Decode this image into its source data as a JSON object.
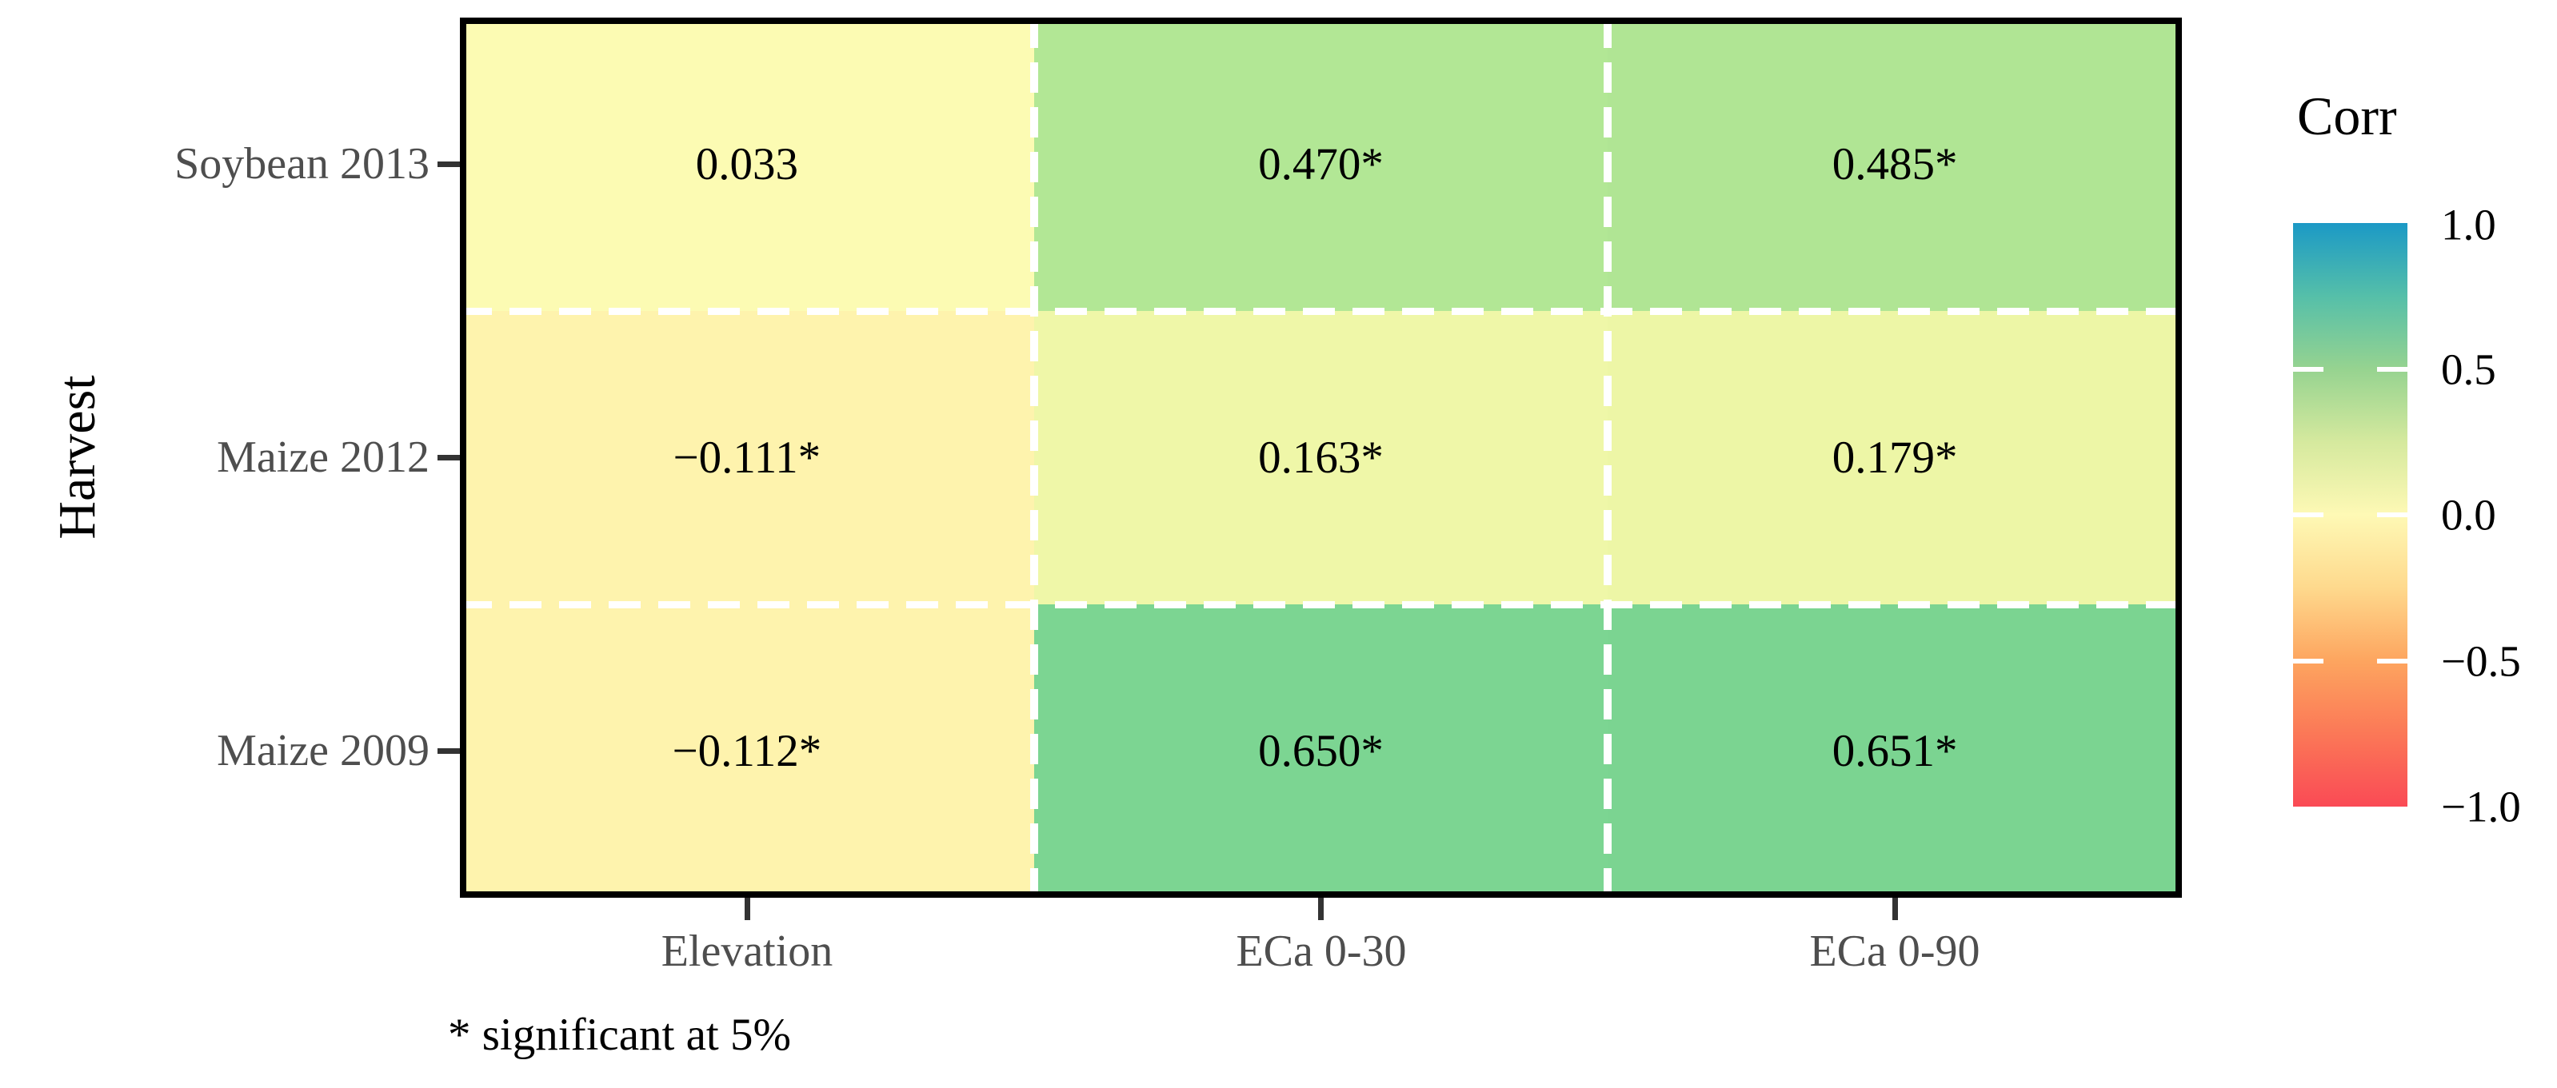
{
  "chart_data": {
    "type": "heatmap",
    "title": "",
    "xlabel": "",
    "ylabel": "Harvest",
    "caption": "* significant at 5%",
    "x_categories": [
      "Elevation",
      "ECa 0-30",
      "ECa 0-90"
    ],
    "y_categories": [
      "Soybean 2013",
      "Maize 2012",
      "Maize 2009"
    ],
    "grid": "white dashed separators between cells",
    "legend": {
      "title": "Corr",
      "position": "right",
      "min": -1.0,
      "max": 1.0,
      "ticks": [
        "1.0",
        "0.5",
        "0.0",
        "−0.5",
        "−1.0"
      ],
      "gradient_stops_bottom_to_top": [
        "#FA4A55",
        "#FB7857",
        "#FDA55F",
        "#FED98D",
        "#FEF9B5",
        "#D5E99E",
        "#96D390",
        "#55BFA9",
        "#1B99C6"
      ]
    },
    "cells": [
      {
        "row": "Soybean 2013",
        "col": "Elevation",
        "value": 0.033,
        "label": "0.033",
        "significant": false,
        "color": "#FCFBB3"
      },
      {
        "row": "Soybean 2013",
        "col": "ECa 0-30",
        "value": 0.47,
        "label": "0.470*",
        "significant": true,
        "color": "#B2E795"
      },
      {
        "row": "Soybean 2013",
        "col": "ECa 0-90",
        "value": 0.485,
        "label": "0.485*",
        "significant": true,
        "color": "#B0E594"
      },
      {
        "row": "Maize 2012",
        "col": "Elevation",
        "value": -0.111,
        "label": "−0.111*",
        "significant": true,
        "color": "#FEF3AD"
      },
      {
        "row": "Maize 2012",
        "col": "ECa 0-30",
        "value": 0.163,
        "label": "0.163*",
        "significant": true,
        "color": "#EFF7A8"
      },
      {
        "row": "Maize 2012",
        "col": "ECa 0-90",
        "value": 0.179,
        "label": "0.179*",
        "significant": true,
        "color": "#EDF6A6"
      },
      {
        "row": "Maize 2009",
        "col": "Elevation",
        "value": -0.112,
        "label": "−0.112*",
        "significant": true,
        "color": "#FEF3AD"
      },
      {
        "row": "Maize 2009",
        "col": "ECa 0-30",
        "value": 0.65,
        "label": "0.650*",
        "significant": true,
        "color": "#7CD592"
      },
      {
        "row": "Maize 2009",
        "col": "ECa 0-90",
        "value": 0.651,
        "label": "0.651*",
        "significant": true,
        "color": "#7BD491"
      }
    ]
  }
}
